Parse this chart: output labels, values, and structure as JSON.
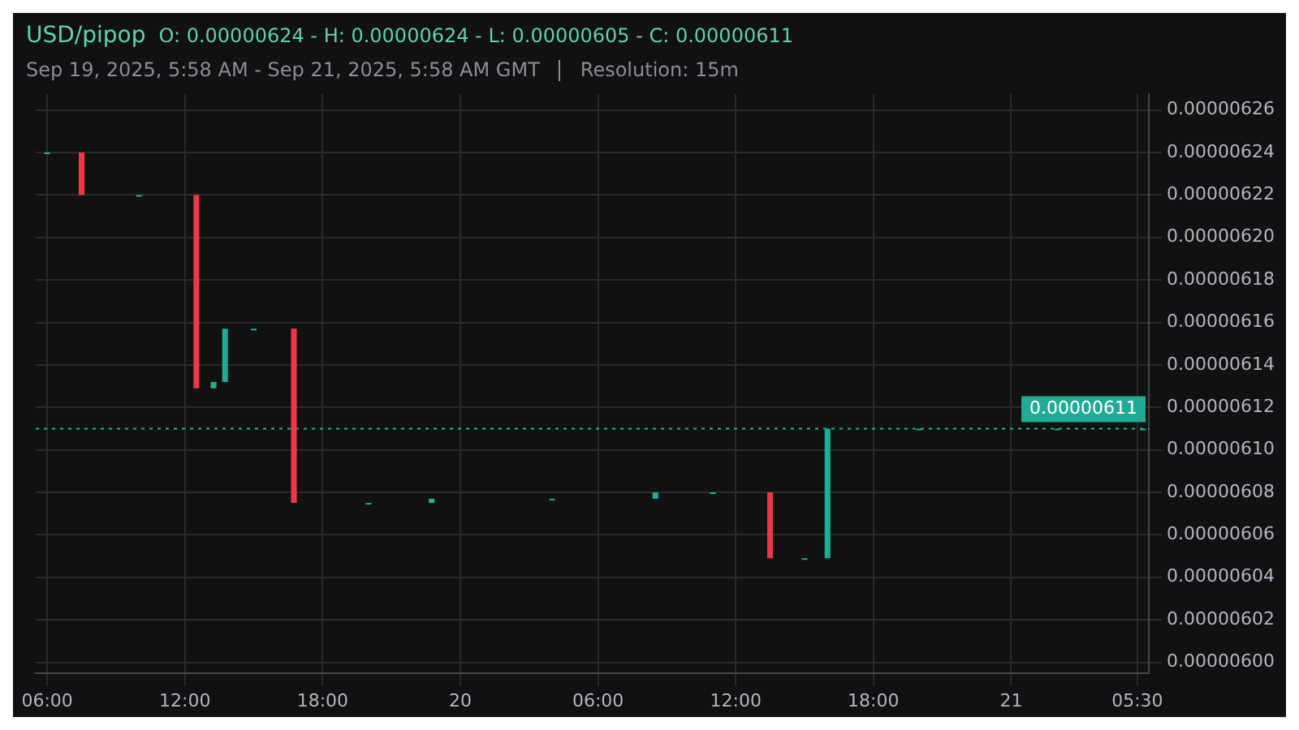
{
  "chart_data": {
    "type": "candlestick",
    "title": "USD/pipop",
    "annotations": [
      "O: 0.00000624 - H: 0.00000624 - L: 0.00000605 - C: 0.00000611",
      "Sep 19, 2025, 5:58 AM - Sep 21, 2025, 5:58 AM GMT",
      "Resolution: 15m"
    ],
    "x": [
      "2025-09-19T06:00",
      "2025-09-19T07:30",
      "2025-09-19T10:00",
      "2025-09-19T12:30",
      "2025-09-19T13:15",
      "2025-09-19T13:45",
      "2025-09-19T15:00",
      "2025-09-19T16:45",
      "2025-09-19T20:00",
      "2025-09-19T22:45",
      "2025-09-20T04:00",
      "2025-09-20T08:30",
      "2025-09-20T11:00",
      "2025-09-20T13:30",
      "2025-09-20T15:00",
      "2025-09-20T16:00",
      "2025-09-20T20:00",
      "2025-09-21T02:00",
      "2025-09-21T05:45"
    ],
    "ohlc": [
      [
        6.24e-06,
        6.24e-06,
        6.24e-06,
        6.24e-06
      ],
      [
        6.24e-06,
        6.24e-06,
        6.22e-06,
        6.22e-06
      ],
      [
        6.22e-06,
        6.22e-06,
        6.22e-06,
        6.22e-06
      ],
      [
        6.22e-06,
        6.22e-06,
        6.129e-06,
        6.129e-06
      ],
      [
        6.129e-06,
        6.132e-06,
        6.129e-06,
        6.132e-06
      ],
      [
        6.132e-06,
        6.157e-06,
        6.132e-06,
        6.157e-06
      ],
      [
        6.157e-06,
        6.157e-06,
        6.157e-06,
        6.157e-06
      ],
      [
        6.157e-06,
        6.157e-06,
        6.075e-06,
        6.075e-06
      ],
      [
        6.075e-06,
        6.075e-06,
        6.075e-06,
        6.075e-06
      ],
      [
        6.075e-06,
        6.077e-06,
        6.075e-06,
        6.077e-06
      ],
      [
        6.077e-06,
        6.077e-06,
        6.077e-06,
        6.077e-06
      ],
      [
        6.077e-06,
        6.08e-06,
        6.077e-06,
        6.08e-06
      ],
      [
        6.08e-06,
        6.08e-06,
        6.08e-06,
        6.08e-06
      ],
      [
        6.08e-06,
        6.08e-06,
        6.049e-06,
        6.049e-06
      ],
      [
        6.049e-06,
        6.049e-06,
        6.049e-06,
        6.049e-06
      ],
      [
        6.049e-06,
        6.11e-06,
        6.049e-06,
        6.11e-06
      ],
      [
        6.11e-06,
        6.11e-06,
        6.11e-06,
        6.11e-06
      ],
      [
        6.11e-06,
        6.11e-06,
        6.11e-06,
        6.11e-06
      ],
      [
        6.11e-06,
        6.11e-06,
        6.11e-06,
        6.11e-06
      ]
    ],
    "colors": [
      "#22ab94",
      "#f23645",
      "#22ab94",
      "#f23645",
      "#22ab94",
      "#22ab94",
      "#22ab94",
      "#f23645",
      "#22ab94",
      "#22ab94",
      "#22ab94",
      "#22ab94",
      "#22ab94",
      "#f23645",
      "#22ab94",
      "#22ab94",
      "#22ab94",
      "#22ab94",
      "#22ab94"
    ],
    "xlim": [
      "2025-09-19T05:30",
      "2025-09-21T06:00"
    ],
    "xticks": [
      {
        "value": "2025-09-19T06:00",
        "label": "06:00"
      },
      {
        "value": "2025-09-19T12:00",
        "label": "12:00"
      },
      {
        "value": "2025-09-19T18:00",
        "label": "18:00"
      },
      {
        "value": "2025-09-20T00:00",
        "label": "20"
      },
      {
        "value": "2025-09-20T06:00",
        "label": "06:00"
      },
      {
        "value": "2025-09-20T12:00",
        "label": "12:00"
      },
      {
        "value": "2025-09-20T18:00",
        "label": "18:00"
      },
      {
        "value": "2025-09-21T00:00",
        "label": "21"
      },
      {
        "value": "2025-09-21T05:30",
        "label": "05:30"
      }
    ],
    "ylim": [
      5.995e-06,
      6.2675e-06
    ],
    "yticks": [
      {
        "value": 6e-06,
        "label": "0.00000600"
      },
      {
        "value": 6.02e-06,
        "label": "0.00000602"
      },
      {
        "value": 6.04e-06,
        "label": "0.00000604"
      },
      {
        "value": 6.06e-06,
        "label": "0.00000606"
      },
      {
        "value": 6.08e-06,
        "label": "0.00000608"
      },
      {
        "value": 6.1e-06,
        "label": "0.00000610"
      },
      {
        "value": 6.12e-06,
        "label": "0.00000612"
      },
      {
        "value": 6.14e-06,
        "label": "0.00000614"
      },
      {
        "value": 6.16e-06,
        "label": "0.00000616"
      },
      {
        "value": 6.18e-06,
        "label": "0.00000618"
      },
      {
        "value": 6.2e-06,
        "label": "0.00000620"
      },
      {
        "value": 6.22e-06,
        "label": "0.00000622"
      },
      {
        "value": 6.24e-06,
        "label": "0.00000624"
      },
      {
        "value": 6.26e-06,
        "label": "0.00000626"
      }
    ],
    "grid": true,
    "ref_lines": [
      {
        "axis": "y",
        "value": 6.11e-06,
        "label": "0.00000611",
        "color": "#22ab94",
        "line_style": "dotted"
      }
    ]
  }
}
